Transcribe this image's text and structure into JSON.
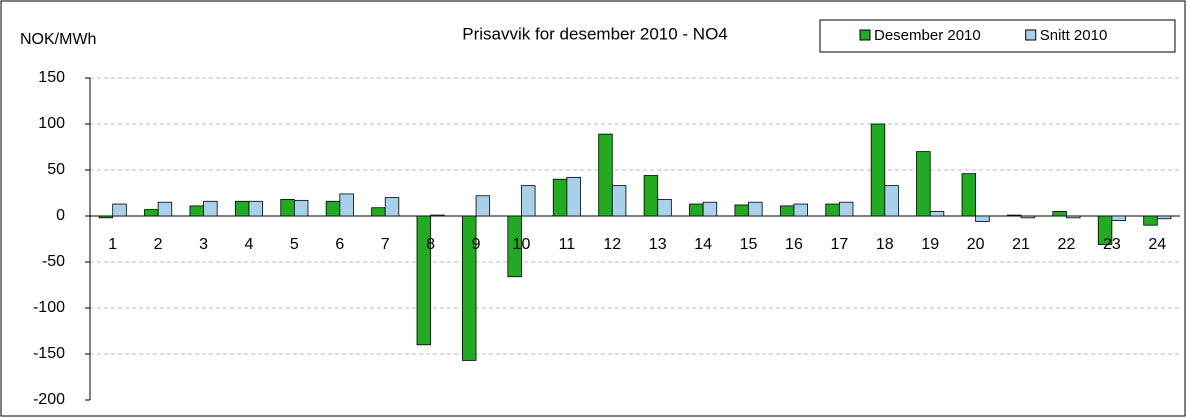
{
  "chart_data": {
    "type": "bar",
    "title": "Prisavvik for desember 2010 - NO4",
    "y_label": "NOK/MWh",
    "categories": [
      "1",
      "2",
      "3",
      "4",
      "5",
      "6",
      "7",
      "8",
      "9",
      "10",
      "11",
      "12",
      "13",
      "14",
      "15",
      "16",
      "17",
      "18",
      "19",
      "20",
      "21",
      "22",
      "23",
      "24"
    ],
    "series": [
      {
        "name": "Desember 2010",
        "color": "#22aa22",
        "values": [
          -2,
          7,
          11,
          16,
          18,
          16,
          9,
          -140,
          -157,
          -66,
          40,
          89,
          44,
          13,
          12,
          11,
          13,
          100,
          70,
          46,
          1,
          5,
          -31,
          -10
        ]
      },
      {
        "name": "Snitt 2010",
        "color": "#a8d0ea",
        "values": [
          13,
          15,
          16,
          16,
          17,
          24,
          20,
          1,
          22,
          33,
          42,
          33,
          18,
          15,
          15,
          13,
          15,
          33,
          5,
          -6,
          -2,
          -2,
          -5,
          -3
        ]
      }
    ],
    "ylim": [
      -200,
      150
    ],
    "yticks": [
      -200,
      -150,
      -100,
      -50,
      0,
      50,
      100,
      150
    ],
    "grid": true
  }
}
